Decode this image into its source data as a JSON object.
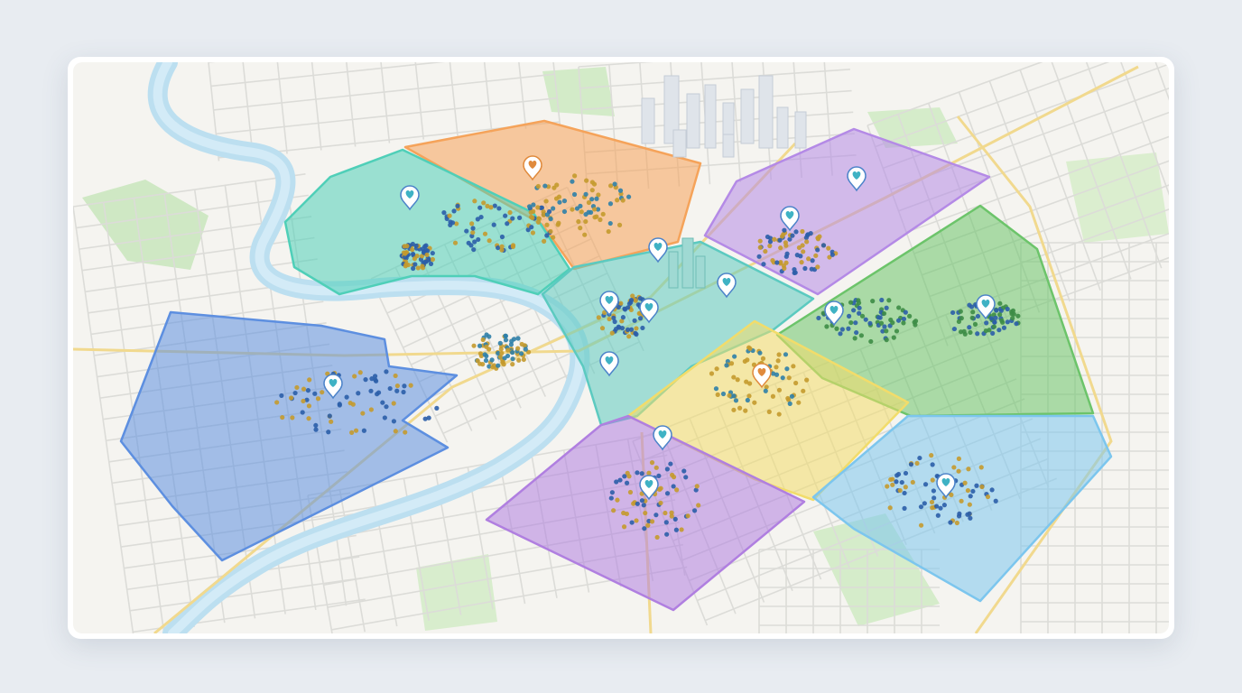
{
  "map": {
    "districts": [
      {
        "color": "#f5a35a"
      },
      {
        "color": "#4fcfb8"
      },
      {
        "color": "#5ccac0"
      },
      {
        "color": "#b48ae6"
      },
      {
        "color": "#6cc46a"
      },
      {
        "color": "#f2dc6a"
      },
      {
        "color": "#7cc6ee"
      },
      {
        "color": "#b07fe0"
      },
      {
        "color": "#5d8fe0"
      }
    ]
  }
}
